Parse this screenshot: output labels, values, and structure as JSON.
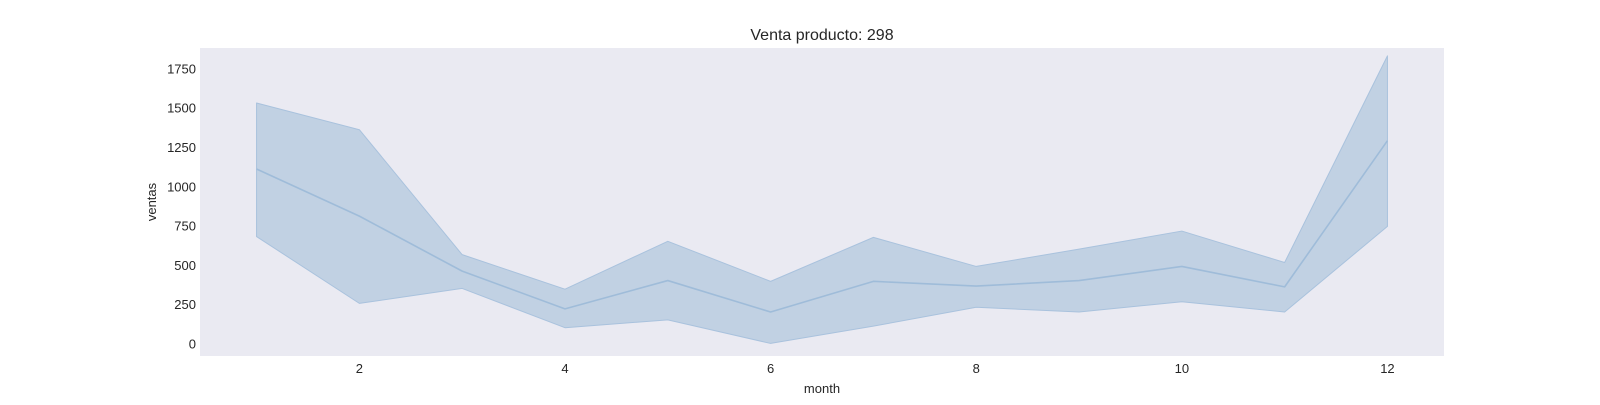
{
  "chart_data": {
    "type": "line",
    "title": "Venta producto: 298",
    "xlabel": "month",
    "ylabel": "ventas",
    "xlim": [
      0.45,
      12.55
    ],
    "ylim": [
      -80,
      1880
    ],
    "xticks": [
      2,
      4,
      6,
      8,
      10,
      12
    ],
    "yticks": [
      0,
      250,
      500,
      750,
      1000,
      1250,
      1500,
      1750
    ],
    "grid": false,
    "series": [
      {
        "name": "ventas",
        "x": [
          1,
          2,
          3,
          4,
          5,
          6,
          7,
          8,
          9,
          10,
          11,
          12
        ],
        "values": [
          1110,
          810,
          460,
          220,
          400,
          200,
          395,
          365,
          400,
          490,
          360,
          1290
        ],
        "lower": [
          680,
          255,
          350,
          100,
          150,
          0,
          110,
          230,
          200,
          265,
          200,
          745
        ],
        "upper": [
          1530,
          1360,
          565,
          345,
          650,
          395,
          675,
          490,
          600,
          715,
          515,
          1830
        ]
      }
    ],
    "colors": {
      "background": "#eaeaf2",
      "line": "#9fbcd9",
      "band": "#c1d1e3",
      "band_edge": "#a9c2dd"
    }
  }
}
